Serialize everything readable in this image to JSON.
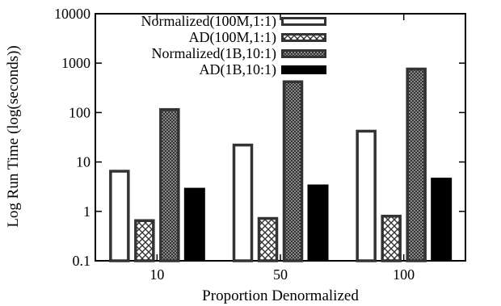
{
  "chart_data": {
    "type": "bar",
    "title": "",
    "xlabel": "Proportion Denormalized",
    "ylabel": "Log Run Time (log(seconds))",
    "yscale": "log",
    "ylim": [
      0.1,
      10000
    ],
    "yticks": [
      "0.1",
      "1",
      "10",
      "100",
      "1000",
      "10000"
    ],
    "grid": false,
    "legend_position": "top-left",
    "categories": [
      "10",
      "50",
      "100"
    ],
    "series": [
      {
        "name": "Normalized(100M,1:1)",
        "pattern": "hollow",
        "values": [
          6.5,
          22,
          42
        ]
      },
      {
        "name": "AD(100M,1:1)",
        "pattern": "crosshatch",
        "values": [
          0.65,
          0.72,
          0.8
        ]
      },
      {
        "name": "Normalized(1B,10:1)",
        "pattern": "dense-dots",
        "values": [
          115,
          420,
          760
        ]
      },
      {
        "name": "AD(1B,10:1)",
        "pattern": "solid",
        "values": [
          3.0,
          3.5,
          4.8
        ]
      }
    ],
    "colors": {
      "ink": "#000000",
      "bar_outline": "#333333",
      "background": "#ffffff"
    }
  }
}
